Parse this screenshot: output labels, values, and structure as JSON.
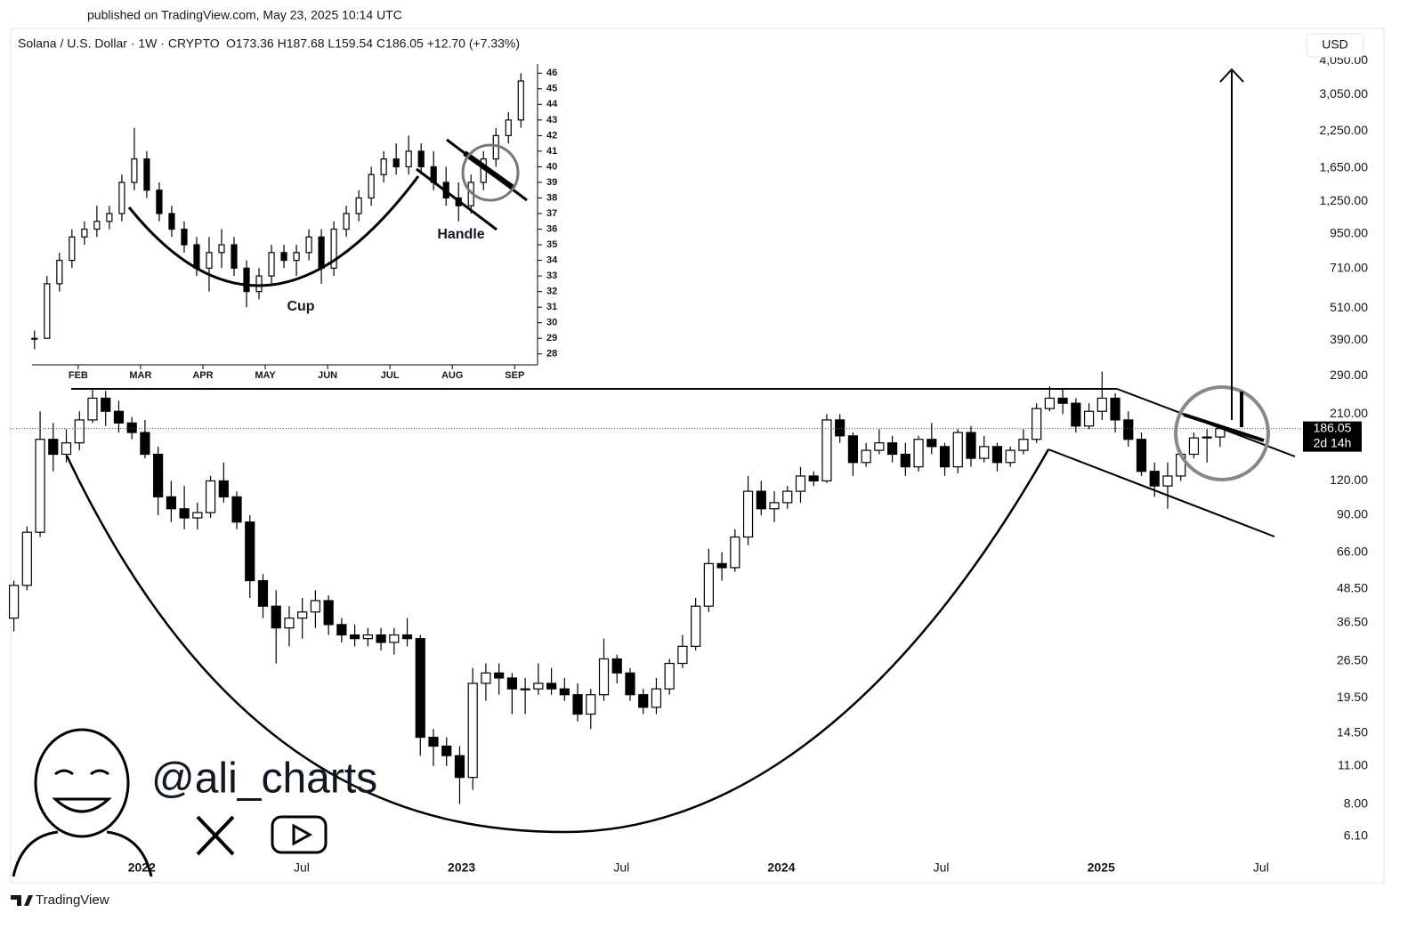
{
  "published": "published on TradingView.com, May 23, 2025 10:14 UTC",
  "symbol": "Solana / U.S. Dollar · 1W · CRYPTO",
  "ohlc_summary": "O173.36   H187.68   L159.54   C186.05   +12.70 (+7.33%)",
  "currency": "USD",
  "countdown": "2d 14h",
  "watermark": "@ali_charts",
  "brand": "TradingView",
  "chart_data": [
    {
      "type": "candlestick",
      "log_scale": true,
      "color_up": "#ffffff",
      "color_down": "#000000",
      "xlim": [
        2021.59,
        2025.62
      ],
      "ylim": [
        4.2,
        5200
      ],
      "xticks": [
        2022,
        {
          "value": 2022.5,
          "label": "Jul"
        },
        2023,
        {
          "value": 2023.5,
          "label": "Jul"
        },
        2024,
        {
          "value": 2024.5,
          "label": "Jul"
        },
        2025,
        {
          "value": 2025.5,
          "label": "Jul"
        }
      ],
      "yticks": [
        {
          "value": 4050,
          "label": "4,050.00"
        },
        {
          "value": 3050,
          "label": "3,050.00"
        },
        {
          "value": 2250,
          "label": "2,250.00"
        },
        {
          "value": 1650,
          "label": "1,650.00"
        },
        {
          "value": 1250,
          "label": "1,250.00"
        },
        {
          "value": 950,
          "label": "950.00"
        },
        {
          "value": 710,
          "label": "710.00"
        },
        {
          "value": 510,
          "label": "510.00"
        },
        {
          "value": 390,
          "label": "390.00"
        },
        {
          "value": 290,
          "label": "290.00"
        },
        {
          "value": 210,
          "label": "210.00"
        },
        {
          "value": 120,
          "label": "120.00"
        },
        {
          "value": 90,
          "label": "90.00"
        },
        {
          "value": 66,
          "label": "66.00"
        },
        {
          "value": 48.5,
          "label": "48.50"
        },
        {
          "value": 36.5,
          "label": "36.50"
        },
        {
          "value": 26.5,
          "label": "26.50"
        },
        {
          "value": 19.5,
          "label": "19.50"
        },
        {
          "value": 14.5,
          "label": "14.50"
        },
        {
          "value": 11,
          "label": "11.00"
        },
        {
          "value": 8,
          "label": "8.00"
        },
        {
          "value": 6.1,
          "label": "6.10"
        }
      ],
      "x": [
        2021.6,
        2021.641,
        2021.682,
        2021.723,
        2021.764,
        2021.805,
        2021.846,
        2021.887,
        2021.928,
        2021.969,
        2022.01,
        2022.051,
        2022.092,
        2022.133,
        2022.174,
        2022.215,
        2022.256,
        2022.297,
        2022.338,
        2022.379,
        2022.42,
        2022.461,
        2022.502,
        2022.543,
        2022.584,
        2022.625,
        2022.666,
        2022.707,
        2022.748,
        2022.789,
        2022.83,
        2022.871,
        2022.912,
        2022.953,
        2022.994,
        2023.035,
        2023.076,
        2023.117,
        2023.158,
        2023.199,
        2023.24,
        2023.281,
        2023.322,
        2023.363,
        2023.404,
        2023.445,
        2023.486,
        2023.527,
        2023.568,
        2023.609,
        2023.65,
        2023.691,
        2023.732,
        2023.773,
        2023.814,
        2023.855,
        2023.896,
        2023.937,
        2023.978,
        2024.019,
        2024.06,
        2024.101,
        2024.142,
        2024.183,
        2024.224,
        2024.265,
        2024.306,
        2024.347,
        2024.388,
        2024.429,
        2024.47,
        2024.511,
        2024.552,
        2024.593,
        2024.634,
        2024.675,
        2024.716,
        2024.757,
        2024.798,
        2024.839,
        2024.88,
        2024.921,
        2024.962,
        2025.003,
        2025.044,
        2025.085,
        2025.126,
        2025.167,
        2025.208,
        2025.249,
        2025.29,
        2025.331,
        2025.372
      ],
      "open": [
        38,
        50,
        78,
        170,
        150,
        165,
        200,
        240,
        215,
        195,
        180,
        150,
        105,
        95,
        88,
        92,
        120,
        105,
        85,
        52,
        42,
        35,
        38,
        40,
        44,
        36,
        33,
        32,
        33,
        31,
        33,
        32,
        14,
        13,
        12,
        10,
        22,
        24,
        23,
        21,
        21,
        22,
        21,
        20,
        17,
        20,
        27,
        24,
        20,
        18,
        21,
        26,
        30,
        42,
        60,
        58,
        75,
        110,
        95,
        100,
        110,
        125,
        120,
        200,
        175,
        140,
        155,
        165,
        150,
        135,
        170,
        160,
        135,
        180,
        145,
        160,
        140,
        155,
        170,
        220,
        240,
        230,
        190,
        215,
        240,
        200,
        170,
        130,
        115,
        125,
        150,
        172,
        173.36
      ],
      "high": [
        52,
        82,
        215,
        195,
        185,
        215,
        260,
        255,
        235,
        205,
        200,
        160,
        120,
        115,
        100,
        125,
        140,
        110,
        90,
        55,
        48,
        42,
        45,
        48,
        46,
        38,
        36,
        35,
        35,
        35,
        38,
        33,
        15,
        14,
        13,
        25,
        26,
        26,
        24,
        23,
        26,
        25,
        23,
        22,
        21,
        32,
        28,
        25,
        21,
        23,
        27,
        33,
        45,
        68,
        66,
        80,
        125,
        120,
        110,
        115,
        135,
        130,
        210,
        210,
        180,
        165,
        185,
        175,
        165,
        175,
        195,
        165,
        185,
        190,
        175,
        165,
        160,
        185,
        230,
        265,
        260,
        240,
        230,
        300,
        250,
        215,
        180,
        140,
        140,
        155,
        180,
        185,
        187.68
      ],
      "low": [
        34,
        48,
        75,
        130,
        140,
        155,
        195,
        190,
        180,
        170,
        145,
        90,
        85,
        80,
        80,
        88,
        100,
        80,
        45,
        38,
        26,
        30,
        32,
        35,
        33,
        31,
        30,
        30,
        29,
        28,
        30,
        12,
        11,
        11,
        8,
        9,
        19,
        20,
        17,
        17,
        20,
        20,
        19,
        16,
        15,
        19,
        22,
        19,
        17,
        17,
        20,
        25,
        29,
        40,
        52,
        56,
        70,
        90,
        85,
        95,
        100,
        115,
        118,
        165,
        125,
        135,
        150,
        140,
        125,
        130,
        150,
        125,
        128,
        135,
        140,
        130,
        135,
        150,
        165,
        215,
        210,
        180,
        185,
        200,
        180,
        160,
        125,
        105,
        95,
        120,
        145,
        140,
        159.54
      ],
      "close": [
        50,
        78,
        170,
        150,
        165,
        200,
        240,
        215,
        195,
        180,
        150,
        105,
        95,
        88,
        92,
        120,
        105,
        85,
        52,
        42,
        35,
        38,
        40,
        44,
        36,
        33,
        32,
        33,
        31,
        33,
        32,
        14,
        13,
        12,
        10,
        22,
        24,
        23,
        21,
        21,
        22,
        21,
        20,
        17,
        20,
        27,
        24,
        20,
        18,
        21,
        26,
        30,
        42,
        60,
        58,
        75,
        110,
        95,
        100,
        110,
        125,
        120,
        200,
        175,
        140,
        155,
        165,
        150,
        135,
        170,
        160,
        135,
        180,
        145,
        160,
        140,
        155,
        170,
        220,
        240,
        230,
        190,
        215,
        240,
        200,
        170,
        130,
        115,
        125,
        150,
        172,
        173.36,
        186.05
      ]
    },
    {
      "type": "candlestick",
      "log_scale": false,
      "color_up": "#ffffff",
      "color_down": "#000000",
      "annotations": [
        "Cup",
        "Handle"
      ],
      "xlim": [
        1.26,
        9.31
      ],
      "ylim": [
        27.3,
        46.7
      ],
      "xticks": [
        {
          "value": 2,
          "label": "FEB"
        },
        {
          "value": 3,
          "label": "MAR"
        },
        {
          "value": 4,
          "label": "APR"
        },
        {
          "value": 5,
          "label": "MAY"
        },
        {
          "value": 6,
          "label": "JUN"
        },
        {
          "value": 7,
          "label": "JUL"
        },
        {
          "value": 8,
          "label": "AUG"
        },
        {
          "value": 9,
          "label": "SEP"
        }
      ],
      "yticks": [
        28,
        29,
        30,
        31,
        32,
        33,
        34,
        35,
        36,
        37,
        38,
        39,
        40,
        41,
        42,
        43,
        44,
        45,
        46
      ],
      "x": [
        1.3,
        1.5,
        1.7,
        1.9,
        2.1,
        2.3,
        2.5,
        2.7,
        2.9,
        3.1,
        3.3,
        3.5,
        3.7,
        3.9,
        4.1,
        4.3,
        4.5,
        4.7,
        4.9,
        5.1,
        5.3,
        5.5,
        5.7,
        5.9,
        6.1,
        6.3,
        6.5,
        6.7,
        6.9,
        7.1,
        7.3,
        7.5,
        7.7,
        7.9,
        8.1,
        8.3,
        8.5,
        8.7,
        8.9,
        9.1
      ],
      "open": [
        29,
        29,
        32.5,
        34,
        35.5,
        36,
        36.5,
        37,
        39,
        40.5,
        38.5,
        37,
        36,
        35,
        33.5,
        34.5,
        35,
        33.5,
        32,
        33,
        34.5,
        34,
        34.5,
        35.5,
        33.5,
        36,
        37,
        38,
        39.5,
        40.5,
        40,
        41,
        40,
        39,
        38,
        37.5,
        39,
        40.5,
        42,
        43
      ],
      "high": [
        29.5,
        33,
        34.5,
        36,
        36.5,
        37.5,
        37.5,
        39.5,
        42.5,
        41,
        39,
        37.5,
        36.5,
        35.5,
        35.5,
        36,
        35.5,
        34,
        33.5,
        35,
        35,
        35,
        36,
        36,
        36.5,
        37.5,
        38.5,
        40,
        41,
        41.5,
        42,
        41.5,
        41,
        40,
        39,
        39.5,
        41,
        42.5,
        43.5,
        46
      ],
      "low": [
        28.3,
        29,
        32,
        33.5,
        35,
        35.5,
        36,
        36.5,
        38.5,
        38,
        36.5,
        35.5,
        34.5,
        33,
        32,
        33.5,
        33,
        31,
        31.5,
        32.5,
        33.5,
        33,
        34,
        32.5,
        33,
        35.5,
        36.5,
        37.5,
        39,
        39.5,
        39.5,
        39.5,
        38.5,
        37.5,
        36.5,
        37,
        38.5,
        40,
        41.5,
        42.5
      ],
      "close": [
        29,
        32.5,
        34,
        35.5,
        36,
        36.5,
        37,
        39,
        40.5,
        38.5,
        37,
        36,
        35,
        33.5,
        34.5,
        35,
        33.5,
        32,
        33,
        34.5,
        34,
        34.5,
        35.5,
        33.5,
        36,
        37,
        38,
        39.5,
        40.5,
        40,
        41,
        40,
        39,
        38,
        37.5,
        39,
        40.5,
        42,
        43,
        45.5
      ]
    }
  ]
}
